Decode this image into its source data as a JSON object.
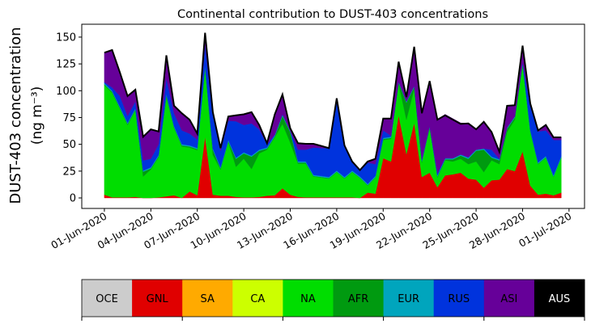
{
  "chart_data": {
    "type": "area",
    "stacked": true,
    "title": "Continental contribution to DUST-403 concentrations",
    "ylabel_line1": "DUST-403 concentration",
    "ylabel_line2": "(ng m⁻³)",
    "xlabel": "",
    "x_start": "01-Jun-2020",
    "x_step_days": 0.5,
    "xlim_days": [
      -1.46,
      31.0
    ],
    "ylim": [
      -9.8,
      162
    ],
    "grid": false,
    "yticks": [
      0,
      25,
      50,
      75,
      100,
      125,
      150
    ],
    "ytick_labels": [
      "0",
      "25",
      "50",
      "75",
      "100",
      "125",
      "150"
    ],
    "xticks_days": [
      0,
      3,
      6,
      9,
      12,
      15,
      18,
      21,
      24,
      27,
      30
    ],
    "xtick_labels": [
      "01-Jun-2020",
      "04-Jun-2020",
      "07-Jun-2020",
      "10-Jun-2020",
      "13-Jun-2020",
      "16-Jun-2020",
      "19-Jun-2020",
      "22-Jun-2020",
      "25-Jun-2020",
      "28-Jun-2020",
      "01-Jul-2020"
    ],
    "total": [
      135.5,
      138,
      117,
      95,
      101,
      57,
      64,
      62,
      133,
      86,
      79,
      73,
      60,
      154,
      80,
      46.5,
      76,
      77,
      78,
      80,
      68,
      51,
      78,
      96.5,
      65,
      51,
      50.5,
      50.5,
      48.5,
      46.5,
      93,
      49,
      34,
      26,
      34,
      36.5,
      74,
      74,
      127,
      94,
      141,
      79,
      109,
      73,
      77,
      73,
      69,
      69.5,
      64,
      71,
      61.5,
      43,
      86,
      86.5,
      142,
      88,
      63,
      68,
      56.5,
      56.5
    ],
    "series": [
      {
        "name": "OCE",
        "color": "#cccccc",
        "values": []
      },
      {
        "name": "GNL",
        "color": "#e00000",
        "values": [
          3,
          0.5,
          0.5,
          0.5,
          1,
          0,
          0,
          0.5,
          1.5,
          2.5,
          0,
          6,
          2.5,
          57,
          3,
          2,
          2,
          1,
          0.5,
          0.5,
          1,
          2,
          2.5,
          9,
          3,
          1,
          0.5,
          0.5,
          0.5,
          0.5,
          0.5,
          0.5,
          0.5,
          0,
          5,
          4,
          37,
          34,
          77,
          41,
          70,
          19.5,
          23.5,
          10,
          21,
          22,
          23.5,
          18,
          17,
          9.5,
          16.5,
          17,
          27,
          25,
          43.5,
          11.5,
          3,
          4,
          2.5,
          5
        ]
      },
      {
        "name": "SA",
        "color": "#ffaa00",
        "values": []
      },
      {
        "name": "CA",
        "color": "#ccff00",
        "values": []
      },
      {
        "name": "NA",
        "color": "#00dd00",
        "values": [
          102,
          97.5,
          82.5,
          67.5,
          80.5,
          20,
          26.5,
          37.5,
          92.5,
          62.5,
          48,
          41,
          42,
          64,
          37,
          24.5,
          50,
          28,
          36,
          26.5,
          40.5,
          43,
          54,
          60,
          48.5,
          31,
          31.5,
          19.5,
          18.5,
          17.5,
          23.5,
          17.5,
          23.5,
          18.5,
          6.5,
          15,
          17,
          21,
          29.5,
          32,
          31.5,
          13.5,
          41.5,
          9,
          14,
          12,
          13,
          13.5,
          17,
          14.5,
          18.5,
          14.5,
          34.5,
          48,
          80.5,
          50,
          28.5,
          33.5,
          17,
          32.5
        ]
      },
      {
        "name": "AFR",
        "color": "#009a10",
        "values": [
          1,
          1,
          1,
          1,
          1,
          4.5,
          1,
          1,
          2,
          1,
          1,
          1,
          1,
          1,
          5,
          1,
          1,
          7.5,
          5,
          11.5,
          2.5,
          1,
          1,
          7.5,
          10,
          1,
          1,
          0.5,
          0.5,
          0.5,
          0.5,
          0.5,
          0.5,
          0.5,
          0.5,
          0.5,
          1,
          1,
          1,
          16,
          2,
          1,
          1,
          1,
          1,
          2,
          3,
          5,
          10,
          21,
          2.5,
          3.5,
          3,
          2,
          1,
          1,
          0.5,
          0.5,
          0.5,
          0.5
        ]
      },
      {
        "name": "EUR",
        "color": "#00a5bd",
        "values": [
          1,
          1,
          1,
          1,
          1,
          1,
          1,
          1,
          1,
          1,
          1,
          1,
          1,
          1,
          1,
          1,
          1,
          1,
          1,
          1,
          1,
          1,
          1,
          1,
          1,
          1,
          1,
          1,
          1,
          1,
          1,
          1,
          1,
          1,
          1,
          1,
          1,
          1,
          1,
          1,
          1,
          1,
          1,
          1,
          1,
          1,
          1,
          1,
          1,
          1,
          1,
          1,
          1,
          1,
          1,
          1,
          1,
          1,
          1,
          1
        ]
      },
      {
        "name": "RUS",
        "color": "#0033dd",
        "values": [
          1,
          3,
          10,
          6.5,
          6.5,
          9.5,
          8,
          10,
          14.5,
          12,
          13,
          11,
          8,
          20,
          32,
          15.5,
          18,
          34,
          25.5,
          30,
          19,
          3,
          0.5,
          0.5,
          0,
          11,
          11,
          25.5,
          26,
          27,
          66,
          28.5,
          7.5,
          5,
          20,
          11,
          7,
          1,
          0,
          0,
          0,
          1,
          0,
          2,
          0,
          0,
          0,
          0.5,
          0,
          0,
          6.5,
          0.5,
          0,
          0,
          0.5,
          23,
          29,
          24,
          33,
          15
        ]
      },
      {
        "name": "ASI",
        "color": "#660099",
        "values": [
          27.5,
          35,
          22,
          18.5,
          11,
          22,
          27.5,
          12,
          21.5,
          7,
          16,
          13,
          5.5,
          11,
          2,
          2.5,
          4,
          5.5,
          10,
          10.5,
          4,
          1,
          19,
          18.5,
          3.5,
          6,
          5.5,
          3.5,
          2,
          0,
          1.5,
          1,
          1,
          1,
          1,
          5,
          11,
          16,
          18.5,
          4,
          36.5,
          43,
          42,
          50,
          41,
          37,
          29.5,
          31.5,
          19,
          24,
          16.5,
          6.5,
          20.5,
          10.5,
          15.5,
          1.5,
          1,
          5,
          2.5,
          2.5
        ]
      },
      {
        "name": "AUS",
        "color": "#000000",
        "values": []
      }
    ]
  }
}
